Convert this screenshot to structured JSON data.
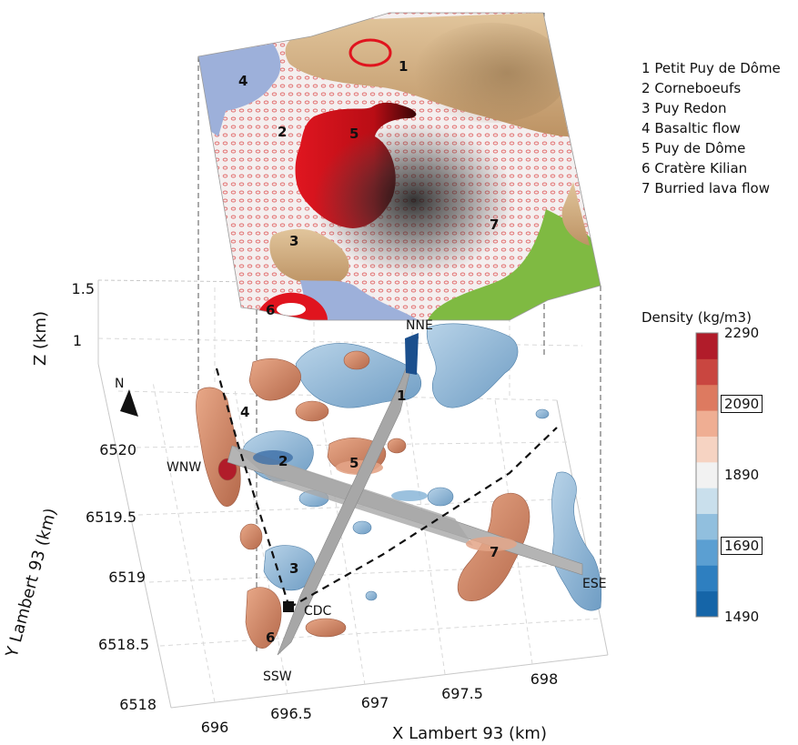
{
  "chart_data": {
    "type": "3d-surface",
    "axes": {
      "x": {
        "label": "X Lambert 93 (km)",
        "ticks": [
          "696",
          "696.5",
          "697",
          "697.5",
          "698"
        ]
      },
      "y": {
        "label": "Y Lambert 93 (km)",
        "ticks": [
          "6518",
          "6518.5",
          "6519",
          "6519.5",
          "6520"
        ]
      },
      "z": {
        "label": "Z (km)",
        "ticks": [
          "1",
          "1.5"
        ]
      }
    },
    "features": [
      {
        "id": "1",
        "name": "Petit Puy de Dôme"
      },
      {
        "id": "2",
        "name": "Corneboeufs"
      },
      {
        "id": "3",
        "name": "Puy Redon"
      },
      {
        "id": "4",
        "name": "Basaltic flow"
      },
      {
        "id": "5",
        "name": "Puy de Dôme"
      },
      {
        "id": "6",
        "name": "Cratère Kilian"
      },
      {
        "id": "7",
        "name": "Burried lava flow"
      }
    ],
    "profile_labels": {
      "nne": "NNE",
      "wnw": "WNW",
      "ese": "ESE",
      "ssw": "SSW",
      "station": "CDC",
      "north": "N"
    },
    "colorbar": {
      "title": "Density (kg/m3)",
      "ticks": [
        {
          "value": "2290",
          "boxed": false
        },
        {
          "value": "2090",
          "boxed": true
        },
        {
          "value": "1890",
          "boxed": false
        },
        {
          "value": "1690",
          "boxed": true
        },
        {
          "value": "1490",
          "boxed": false
        }
      ],
      "colors": [
        "#1565a8",
        "#2e7fc0",
        "#5b9fd2",
        "#91bfde",
        "#c9dfec",
        "#f2f2f2",
        "#f6d3c2",
        "#efae93",
        "#dd7a60",
        "#c94640",
        "#b11c2a"
      ]
    },
    "map_colors": {
      "trachyte_tan": "#d5b07e",
      "basalt_blue": "#9db0da",
      "dome_red": "#d9141e",
      "green": "#7fba42",
      "dotted_bg": "#f1eded"
    }
  }
}
